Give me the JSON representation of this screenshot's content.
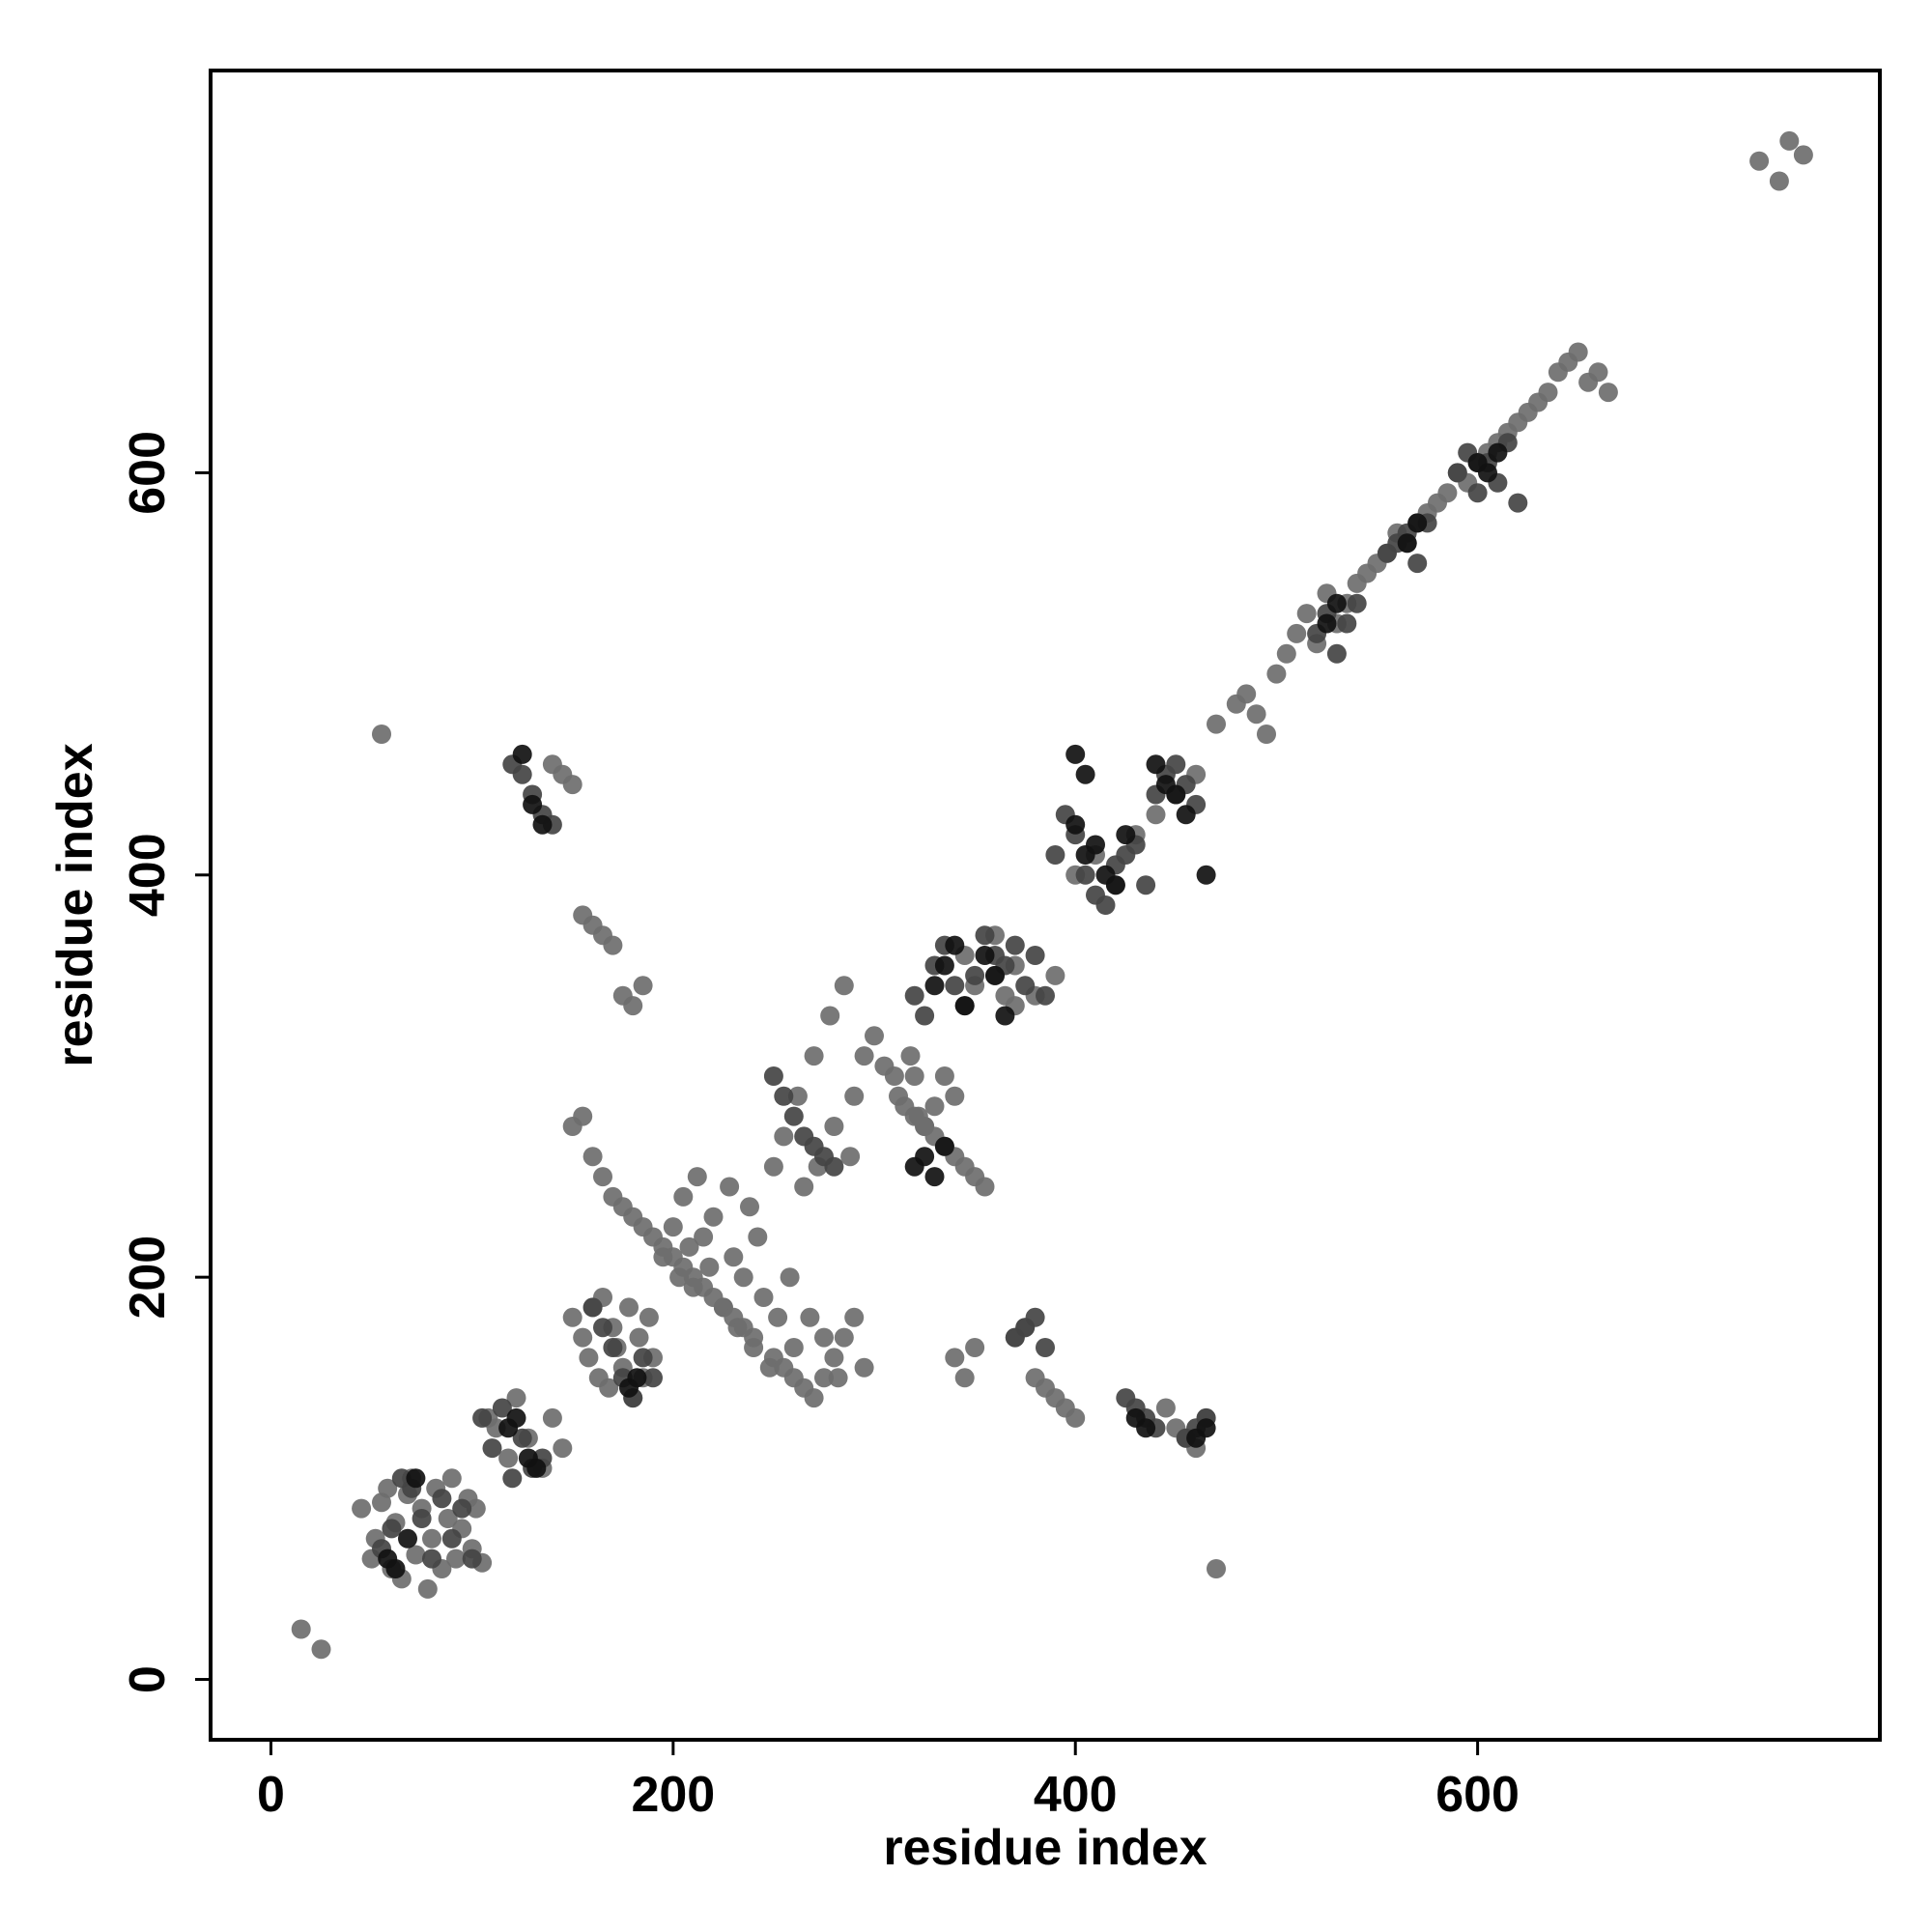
{
  "chart_data": {
    "type": "scatter",
    "title": "",
    "xlabel": "residue index",
    "ylabel": "residue index",
    "xlim": [
      -30,
      800
    ],
    "ylim": [
      -30,
      800
    ],
    "x_ticks": [
      0,
      200,
      400,
      600
    ],
    "y_ticks": [
      0,
      200,
      400,
      600
    ],
    "x_tick_labels": [
      "0",
      "200",
      "400",
      "600"
    ],
    "y_tick_labels": [
      "0",
      "200",
      "400",
      "600"
    ],
    "grid": false,
    "legend": "none",
    "colors": {
      "light": "#6e6e6e",
      "mid": "#444444",
      "dark": "#111111"
    },
    "series": [
      {
        "color": "#6e6e6e",
        "x": [
          15,
          25,
          45,
          50,
          52,
          55,
          58,
          60,
          62,
          65,
          68,
          70,
          72,
          75,
          78,
          80,
          82,
          85,
          88,
          90,
          92,
          95,
          98,
          100,
          102,
          105,
          108,
          112,
          118,
          122,
          128,
          135,
          140,
          145,
          150,
          155,
          158,
          160,
          163,
          165,
          168,
          170,
          172,
          175,
          178,
          180,
          183,
          185,
          188,
          190,
          195,
          200,
          203,
          205,
          208,
          210,
          212,
          215,
          218,
          220,
          225,
          228,
          230,
          232,
          235,
          238,
          240,
          242,
          245,
          248,
          250,
          252,
          255,
          258,
          260,
          262,
          265,
          268,
          270,
          272,
          275,
          278,
          280,
          282,
          285,
          288,
          290,
          295,
          300,
          305,
          310,
          312,
          315,
          318,
          320,
          322,
          325,
          330,
          335,
          340,
          345,
          350,
          360,
          370,
          380,
          390,
          400,
          410,
          420,
          430,
          440,
          450,
          460,
          470,
          480,
          485,
          490,
          495,
          500,
          505,
          510,
          515,
          520,
          525,
          530,
          535,
          540,
          545,
          550,
          555,
          560,
          565,
          570,
          575,
          580,
          585,
          590,
          595,
          600,
          605,
          610,
          615,
          620,
          625,
          630,
          635,
          640,
          645,
          650,
          655,
          660,
          665,
          740,
          750,
          755,
          762,
          55,
          150,
          155,
          160,
          165,
          170,
          175,
          180,
          185,
          190,
          195,
          200,
          205,
          210,
          215,
          220,
          225,
          230,
          235,
          240,
          250,
          255,
          260,
          265,
          270,
          275,
          280,
          285,
          290,
          295,
          340,
          345,
          350,
          370,
          375,
          380,
          385,
          390,
          395,
          400,
          445,
          450,
          455,
          460,
          465,
          470,
          140,
          145,
          150,
          155,
          160,
          165,
          170,
          175,
          180,
          185,
          320,
          325,
          330,
          335,
          340,
          345,
          350,
          355,
          360,
          365,
          370
        ],
        "y": [
          25,
          15,
          85,
          60,
          70,
          88,
          95,
          55,
          78,
          50,
          92,
          100,
          62,
          85,
          45,
          70,
          95,
          55,
          80,
          100,
          60,
          75,
          90,
          65,
          85,
          58,
          130,
          125,
          110,
          140,
          120,
          105,
          130,
          115,
          180,
          170,
          160,
          185,
          150,
          190,
          145,
          175,
          165,
          155,
          185,
          140,
          170,
          150,
          180,
          160,
          210,
          225,
          200,
          240,
          215,
          195,
          250,
          220,
          205,
          230,
          185,
          245,
          210,
          175,
          200,
          235,
          165,
          220,
          190,
          155,
          255,
          180,
          270,
          200,
          165,
          290,
          245,
          180,
          310,
          255,
          170,
          330,
          275,
          150,
          345,
          260,
          290,
          310,
          320,
          305,
          300,
          290,
          285,
          310,
          300,
          280,
          275,
          285,
          300,
          290,
          360,
          345,
          370,
          355,
          340,
          350,
          400,
          410,
          395,
          420,
          430,
          440,
          450,
          475,
          485,
          490,
          480,
          470,
          500,
          510,
          520,
          530,
          515,
          540,
          525,
          535,
          545,
          550,
          555,
          560,
          570,
          565,
          575,
          580,
          585,
          590,
          600,
          595,
          605,
          610,
          615,
          620,
          625,
          630,
          635,
          640,
          650,
          655,
          660,
          645,
          650,
          640,
          755,
          745,
          765,
          758,
          470,
          275,
          280,
          260,
          250,
          240,
          235,
          230,
          225,
          220,
          215,
          210,
          205,
          200,
          195,
          190,
          185,
          180,
          175,
          170,
          160,
          155,
          150,
          145,
          140,
          150,
          160,
          170,
          180,
          155,
          160,
          150,
          165,
          170,
          175,
          150,
          145,
          140,
          135,
          130,
          135,
          125,
          120,
          115,
          130,
          55,
          455,
          450,
          445,
          380,
          375,
          370,
          365,
          340,
          335,
          345,
          280,
          275,
          270,
          265,
          260,
          255,
          250,
          245,
          350,
          340,
          335
        ]
      },
      {
        "color": "#444444",
        "x": [
          55,
          60,
          65,
          70,
          75,
          80,
          85,
          90,
          95,
          100,
          105,
          110,
          115,
          120,
          125,
          130,
          135,
          160,
          165,
          170,
          175,
          180,
          185,
          190,
          250,
          255,
          260,
          265,
          270,
          275,
          280,
          320,
          325,
          330,
          335,
          340,
          345,
          350,
          355,
          360,
          365,
          370,
          375,
          380,
          385,
          390,
          395,
          400,
          405,
          410,
          415,
          420,
          425,
          430,
          435,
          440,
          445,
          450,
          455,
          460,
          520,
          525,
          530,
          535,
          540,
          555,
          560,
          565,
          570,
          575,
          590,
          595,
          600,
          605,
          610,
          615,
          620,
          120,
          125,
          130,
          135,
          140,
          425,
          430,
          435,
          440,
          455,
          460,
          465,
          370,
          375,
          380,
          385
        ],
        "y": [
          65,
          75,
          100,
          95,
          80,
          60,
          90,
          70,
          85,
          60,
          130,
          115,
          135,
          100,
          120,
          105,
          110,
          185,
          175,
          165,
          150,
          140,
          160,
          150,
          300,
          290,
          280,
          270,
          265,
          260,
          255,
          340,
          330,
          355,
          365,
          345,
          335,
          350,
          370,
          360,
          355,
          365,
          345,
          360,
          340,
          410,
          430,
          420,
          400,
          390,
          385,
          405,
          410,
          415,
          395,
          440,
          450,
          455,
          445,
          435,
          520,
          530,
          510,
          525,
          535,
          560,
          565,
          570,
          555,
          575,
          600,
          610,
          590,
          605,
          595,
          615,
          585,
          455,
          450,
          440,
          430,
          425,
          140,
          135,
          130,
          125,
          120,
          125,
          130,
          170,
          175,
          180,
          165
        ]
      },
      {
        "color": "#111111",
        "x": [
          58,
          62,
          68,
          72,
          118,
          122,
          128,
          132,
          178,
          182,
          330,
          335,
          340,
          345,
          355,
          360,
          365,
          400,
          405,
          410,
          415,
          420,
          425,
          525,
          530,
          565,
          570,
          600,
          605,
          610,
          440,
          445,
          450,
          455,
          125,
          130,
          135,
          320,
          325,
          330,
          335,
          430,
          435,
          460,
          465,
          400,
          405,
          465
        ],
        "y": [
          60,
          55,
          70,
          100,
          125,
          130,
          110,
          105,
          145,
          150,
          345,
          355,
          365,
          335,
          360,
          350,
          330,
          425,
          410,
          415,
          400,
          395,
          420,
          525,
          535,
          565,
          575,
          605,
          600,
          610,
          455,
          445,
          440,
          430,
          460,
          435,
          425,
          255,
          260,
          250,
          265,
          130,
          125,
          120,
          125,
          460,
          450,
          400
        ]
      }
    ]
  }
}
